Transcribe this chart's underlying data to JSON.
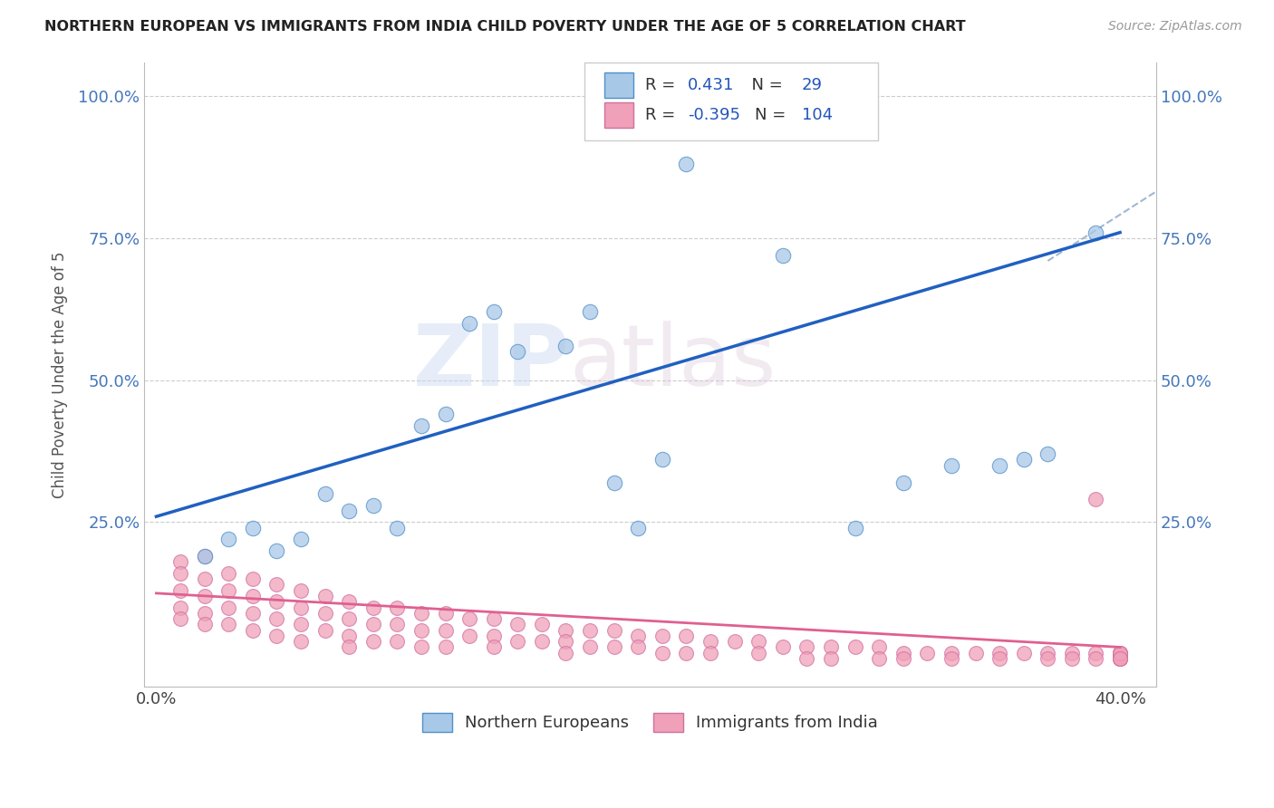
{
  "title": "NORTHERN EUROPEAN VS IMMIGRANTS FROM INDIA CHILD POVERTY UNDER THE AGE OF 5 CORRELATION CHART",
  "source": "Source: ZipAtlas.com",
  "ylabel": "Child Poverty Under the Age of 5",
  "watermark_zip": "ZIP",
  "watermark_atlas": "atlas",
  "legend_r1": "0.431",
  "legend_n1": "29",
  "legend_r2": "-0.395",
  "legend_n2": "104",
  "color_blue": "#a8c8e8",
  "color_pink": "#f0a0b8",
  "color_blue_line": "#2060c0",
  "color_pink_line": "#e06090",
  "color_dashed_line": "#a0b8d0",
  "blue_x": [
    0.02,
    0.03,
    0.04,
    0.05,
    0.06,
    0.07,
    0.08,
    0.09,
    0.1,
    0.11,
    0.12,
    0.13,
    0.14,
    0.15,
    0.17,
    0.18,
    0.19,
    0.2,
    0.21,
    0.22,
    0.24,
    0.26,
    0.29,
    0.31,
    0.33,
    0.35,
    0.36,
    0.37,
    0.39
  ],
  "blue_y": [
    0.19,
    0.22,
    0.24,
    0.2,
    0.22,
    0.3,
    0.27,
    0.28,
    0.24,
    0.42,
    0.44,
    0.6,
    0.62,
    0.55,
    0.56,
    0.62,
    0.32,
    0.24,
    0.36,
    0.88,
    0.99,
    0.72,
    0.24,
    0.32,
    0.35,
    0.35,
    0.36,
    0.37,
    0.76
  ],
  "pink_x": [
    0.01,
    0.01,
    0.01,
    0.01,
    0.01,
    0.02,
    0.02,
    0.02,
    0.02,
    0.02,
    0.03,
    0.03,
    0.03,
    0.03,
    0.04,
    0.04,
    0.04,
    0.04,
    0.05,
    0.05,
    0.05,
    0.05,
    0.06,
    0.06,
    0.06,
    0.06,
    0.07,
    0.07,
    0.07,
    0.08,
    0.08,
    0.08,
    0.08,
    0.09,
    0.09,
    0.09,
    0.1,
    0.1,
    0.1,
    0.11,
    0.11,
    0.11,
    0.12,
    0.12,
    0.12,
    0.13,
    0.13,
    0.14,
    0.14,
    0.14,
    0.15,
    0.15,
    0.16,
    0.16,
    0.17,
    0.17,
    0.17,
    0.18,
    0.18,
    0.19,
    0.19,
    0.2,
    0.2,
    0.21,
    0.21,
    0.22,
    0.22,
    0.23,
    0.23,
    0.24,
    0.25,
    0.25,
    0.26,
    0.27,
    0.27,
    0.28,
    0.28,
    0.29,
    0.3,
    0.3,
    0.31,
    0.31,
    0.32,
    0.33,
    0.33,
    0.34,
    0.35,
    0.35,
    0.36,
    0.37,
    0.37,
    0.38,
    0.38,
    0.39,
    0.39,
    0.39,
    0.4,
    0.4,
    0.4,
    0.4,
    0.4,
    0.4,
    0.4,
    0.4
  ],
  "pink_y": [
    0.18,
    0.16,
    0.13,
    0.1,
    0.08,
    0.19,
    0.15,
    0.12,
    0.09,
    0.07,
    0.16,
    0.13,
    0.1,
    0.07,
    0.15,
    0.12,
    0.09,
    0.06,
    0.14,
    0.11,
    0.08,
    0.05,
    0.13,
    0.1,
    0.07,
    0.04,
    0.12,
    0.09,
    0.06,
    0.11,
    0.08,
    0.05,
    0.03,
    0.1,
    0.07,
    0.04,
    0.1,
    0.07,
    0.04,
    0.09,
    0.06,
    0.03,
    0.09,
    0.06,
    0.03,
    0.08,
    0.05,
    0.08,
    0.05,
    0.03,
    0.07,
    0.04,
    0.07,
    0.04,
    0.06,
    0.04,
    0.02,
    0.06,
    0.03,
    0.06,
    0.03,
    0.05,
    0.03,
    0.05,
    0.02,
    0.05,
    0.02,
    0.04,
    0.02,
    0.04,
    0.04,
    0.02,
    0.03,
    0.03,
    0.01,
    0.03,
    0.01,
    0.03,
    0.03,
    0.01,
    0.02,
    0.01,
    0.02,
    0.02,
    0.01,
    0.02,
    0.02,
    0.01,
    0.02,
    0.02,
    0.01,
    0.02,
    0.01,
    0.02,
    0.01,
    0.29,
    0.02,
    0.01,
    0.02,
    0.01,
    0.02,
    0.01,
    0.02,
    0.01
  ],
  "blue_line_x": [
    0.0,
    0.4
  ],
  "blue_line_y": [
    0.26,
    0.76
  ],
  "pink_line_x": [
    0.0,
    0.4
  ],
  "pink_line_y": [
    0.125,
    0.03
  ],
  "dashed_line_x": [
    0.37,
    0.44
  ],
  "dashed_line_y": [
    0.71,
    0.9
  ],
  "xlim": [
    -0.005,
    0.415
  ],
  "ylim": [
    -0.04,
    1.06
  ],
  "yticks": [
    0.25,
    0.5,
    0.75,
    1.0
  ],
  "ytick_labels": [
    "25.0%",
    "50.0%",
    "75.0%",
    "100.0%"
  ],
  "xticks": [
    0.0,
    0.4
  ],
  "xtick_labels": [
    "0.0%",
    "40.0%"
  ]
}
